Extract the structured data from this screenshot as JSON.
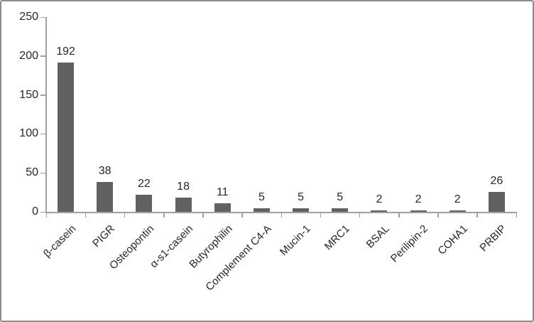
{
  "chart_data": {
    "type": "bar",
    "title": "",
    "xlabel": "",
    "ylabel": "",
    "categories": [
      "β-casein",
      "PIGR",
      "Osteopontin",
      "α-s1-casein",
      "Butyrophilin",
      "Complement C4-A",
      "Mucin-1",
      "MRC1",
      "BSAL",
      "Perilipin-2",
      "COHA1",
      "PRBIP"
    ],
    "values": [
      192,
      38,
      22,
      18,
      11,
      5,
      5,
      5,
      2,
      2,
      2,
      26
    ],
    "data_labels": [
      192,
      38,
      22,
      18,
      11,
      5,
      5,
      5,
      2,
      2,
      2,
      26
    ],
    "ylim": [
      0,
      250
    ],
    "yticks": [
      0,
      50,
      100,
      150,
      200,
      250
    ],
    "grid": false,
    "legend_position": "none",
    "colors": {
      "bar": "#616161",
      "axis": "#a0a0a0",
      "text": "#262626",
      "frame_border": "#8c8c8c",
      "background": "#ffffff"
    }
  }
}
